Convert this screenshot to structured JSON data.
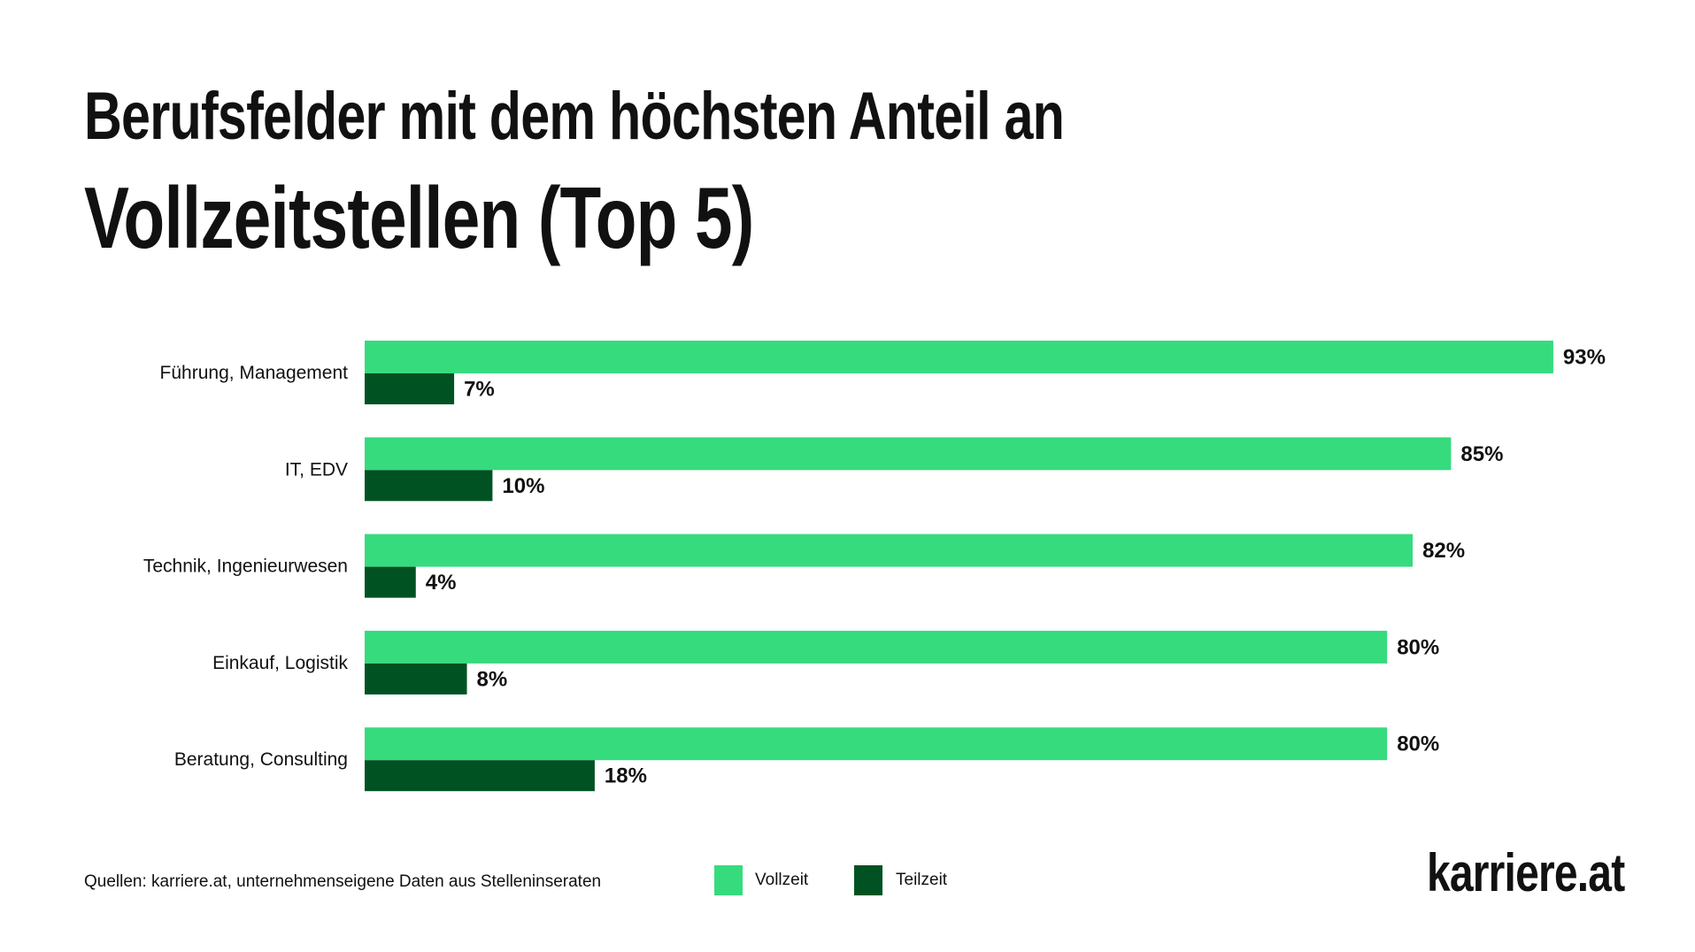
{
  "chart_data": {
    "type": "bar",
    "orientation": "horizontal",
    "title_line1": "Berufsfelder mit dem höchsten Anteil an",
    "title_line2": "Vollzeitstellen (Top 5)",
    "categories": [
      "Führung, Management",
      "IT, EDV",
      "Technik, Ingenieurwesen",
      "Einkauf, Logistik",
      "Beratung, Consulting"
    ],
    "series": [
      {
        "name": "Vollzeit",
        "color": "#36db7e",
        "values": [
          93,
          85,
          82,
          80,
          80
        ]
      },
      {
        "name": "Teilzeit",
        "color": "#005222",
        "values": [
          7,
          10,
          4,
          8,
          18
        ]
      }
    ],
    "value_suffix": "%",
    "xlim": [
      0,
      100
    ],
    "grid": false,
    "legend": "bottom-center"
  },
  "source": "Quellen: karriere.at, unternehmenseigene Daten aus Stelleninseraten",
  "logo": "karriere.at"
}
